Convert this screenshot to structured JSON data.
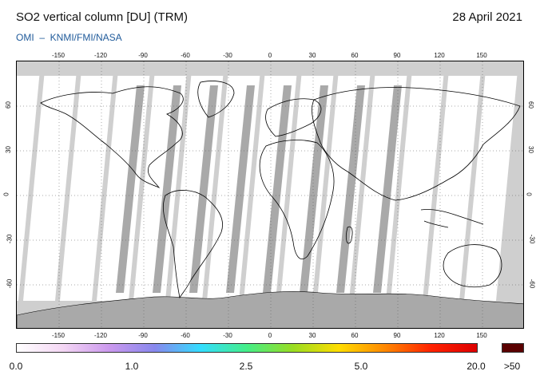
{
  "header": {
    "title": "SO2 vertical column [DU] (TRM)",
    "date": "28 April 2021",
    "credit": "OMI  –  KNMI/FMI/NASA"
  },
  "map": {
    "projection": "equirectangular",
    "lon_range": [
      -180,
      180
    ],
    "lat_range": [
      -90,
      90
    ],
    "lon_ticks": [
      "-150",
      "-120",
      "-90",
      "-60",
      "-30",
      "0",
      "30",
      "60",
      "90",
      "120",
      "150"
    ],
    "lon_tick_values": [
      -150,
      -120,
      -90,
      -60,
      -30,
      0,
      30,
      60,
      90,
      120,
      150
    ],
    "lat_ticks": [
      "60",
      "30",
      "0",
      "-30",
      "-60"
    ],
    "lat_tick_values": [
      60,
      30,
      0,
      -30,
      -60
    ],
    "grid": "dotted",
    "no_data_color": "#cfcfcf",
    "swath_color": "#ffffff",
    "gap_color": "#a9a9a9"
  },
  "colorbar": {
    "labels": [
      "0.0",
      "1.0",
      "2.5",
      "5.0",
      "20.0",
      ">50"
    ],
    "label_values": [
      0.0,
      1.0,
      2.5,
      5.0,
      20.0
    ],
    "colors": [
      "#ffffff",
      "#f4d7f4",
      "#cc99ee",
      "#8888ee",
      "#33ddff",
      "#44ee88",
      "#99dd22",
      "#ffdd00",
      "#ff8800",
      "#ff2200",
      "#dd0000"
    ],
    "over_color": "#5a0000"
  }
}
